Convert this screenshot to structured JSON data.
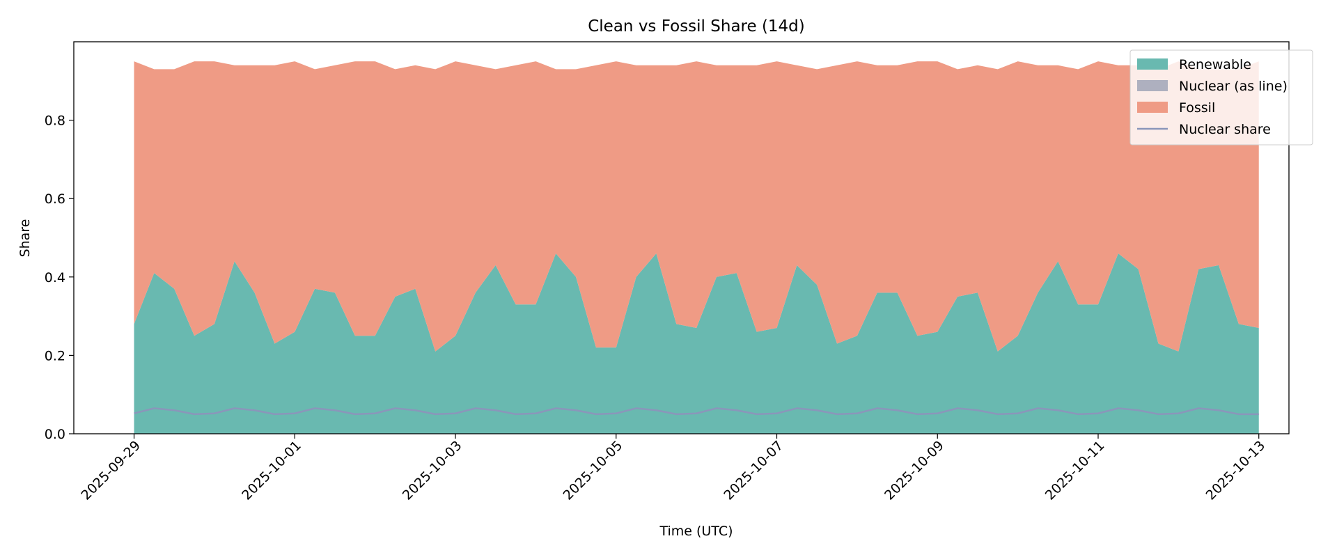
{
  "chart_data": {
    "type": "area",
    "title": "Clean vs Fossil Share (14d)",
    "xlabel": "Time (UTC)",
    "ylabel": "Share",
    "xlim": [
      "2025-09-28T06:00",
      "2025-10-13T09:00"
    ],
    "ylim": [
      0,
      1.0
    ],
    "x_ticks": [
      "2025-09-29",
      "2025-10-01",
      "2025-10-03",
      "2025-10-05",
      "2025-10-07",
      "2025-10-09",
      "2025-10-11",
      "2025-10-13"
    ],
    "y_ticks": [
      0.0,
      0.2,
      0.4,
      0.6,
      0.8
    ],
    "y_tick_labels": [
      "0.0",
      "0.2",
      "0.4",
      "0.6",
      "0.8"
    ],
    "grid": false,
    "legend": {
      "position": "upper-right",
      "entries": [
        {
          "label": "Renewable",
          "kind": "patch",
          "color": "#69b9b0"
        },
        {
          "label": "Nuclear (as line)",
          "kind": "patch",
          "color": "#aeb0bf"
        },
        {
          "label": "Fossil",
          "kind": "patch",
          "color": "#ef9b85"
        },
        {
          "label": "Nuclear share",
          "kind": "line",
          "color": "#8a96ba"
        }
      ]
    },
    "x": [
      "2025-09-29T00:00",
      "2025-09-29T06:00",
      "2025-09-29T12:00",
      "2025-09-29T18:00",
      "2025-09-30T00:00",
      "2025-09-30T06:00",
      "2025-09-30T12:00",
      "2025-09-30T18:00",
      "2025-10-01T00:00",
      "2025-10-01T06:00",
      "2025-10-01T12:00",
      "2025-10-01T18:00",
      "2025-10-02T00:00",
      "2025-10-02T06:00",
      "2025-10-02T12:00",
      "2025-10-02T18:00",
      "2025-10-03T00:00",
      "2025-10-03T06:00",
      "2025-10-03T12:00",
      "2025-10-03T18:00",
      "2025-10-04T00:00",
      "2025-10-04T06:00",
      "2025-10-04T12:00",
      "2025-10-04T18:00",
      "2025-10-05T00:00",
      "2025-10-05T06:00",
      "2025-10-05T12:00",
      "2025-10-05T18:00",
      "2025-10-06T00:00",
      "2025-10-06T06:00",
      "2025-10-06T12:00",
      "2025-10-06T18:00",
      "2025-10-07T00:00",
      "2025-10-07T06:00",
      "2025-10-07T12:00",
      "2025-10-07T18:00",
      "2025-10-08T00:00",
      "2025-10-08T06:00",
      "2025-10-08T12:00",
      "2025-10-08T18:00",
      "2025-10-09T00:00",
      "2025-10-09T06:00",
      "2025-10-09T12:00",
      "2025-10-09T18:00",
      "2025-10-10T00:00",
      "2025-10-10T06:00",
      "2025-10-10T12:00",
      "2025-10-10T18:00",
      "2025-10-11T00:00",
      "2025-10-11T06:00",
      "2025-10-11T12:00",
      "2025-10-11T18:00",
      "2025-10-12T00:00",
      "2025-10-12T06:00",
      "2025-10-12T12:00",
      "2025-10-12T18:00",
      "2025-10-13T00:00"
    ],
    "series": [
      {
        "name": "Renewable",
        "color": "#69b9b0",
        "values": [
          0.28,
          0.41,
          0.37,
          0.25,
          0.28,
          0.44,
          0.36,
          0.23,
          0.26,
          0.37,
          0.36,
          0.25,
          0.25,
          0.35,
          0.37,
          0.21,
          0.25,
          0.36,
          0.43,
          0.33,
          0.33,
          0.46,
          0.4,
          0.22,
          0.22,
          0.4,
          0.46,
          0.28,
          0.27,
          0.4,
          0.41,
          0.26,
          0.27,
          0.43,
          0.38,
          0.23,
          0.25,
          0.36,
          0.36,
          0.25,
          0.26,
          0.35,
          0.36,
          0.21,
          0.25,
          0.36,
          0.44,
          0.33,
          0.33,
          0.46,
          0.42,
          0.23,
          0.21,
          0.42,
          0.43,
          0.28,
          0.27
        ]
      },
      {
        "name": "Fossil",
        "color": "#ef9b85",
        "values": [
          0.67,
          0.52,
          0.56,
          0.7,
          0.67,
          0.5,
          0.58,
          0.71,
          0.69,
          0.56,
          0.58,
          0.7,
          0.7,
          0.58,
          0.57,
          0.72,
          0.7,
          0.58,
          0.5,
          0.61,
          0.62,
          0.47,
          0.53,
          0.72,
          0.73,
          0.54,
          0.48,
          0.66,
          0.68,
          0.54,
          0.53,
          0.68,
          0.68,
          0.51,
          0.55,
          0.71,
          0.7,
          0.58,
          0.58,
          0.7,
          0.69,
          0.58,
          0.58,
          0.72,
          0.7,
          0.58,
          0.5,
          0.6,
          0.62,
          0.48,
          0.52,
          0.7,
          0.74,
          0.51,
          0.5,
          0.65,
          0.68
        ]
      },
      {
        "name": "Nuclear share",
        "color": "#8a96ba",
        "values": [
          0.052,
          0.065,
          0.06,
          0.05,
          0.052,
          0.065,
          0.06,
          0.05,
          0.052,
          0.065,
          0.06,
          0.05,
          0.052,
          0.065,
          0.06,
          0.05,
          0.052,
          0.065,
          0.06,
          0.05,
          0.052,
          0.065,
          0.06,
          0.05,
          0.052,
          0.065,
          0.06,
          0.05,
          0.052,
          0.065,
          0.06,
          0.05,
          0.052,
          0.065,
          0.06,
          0.05,
          0.052,
          0.065,
          0.06,
          0.05,
          0.052,
          0.065,
          0.06,
          0.05,
          0.052,
          0.065,
          0.06,
          0.05,
          0.052,
          0.065,
          0.06,
          0.05,
          0.052,
          0.065,
          0.06,
          0.05,
          0.05
        ]
      }
    ]
  }
}
